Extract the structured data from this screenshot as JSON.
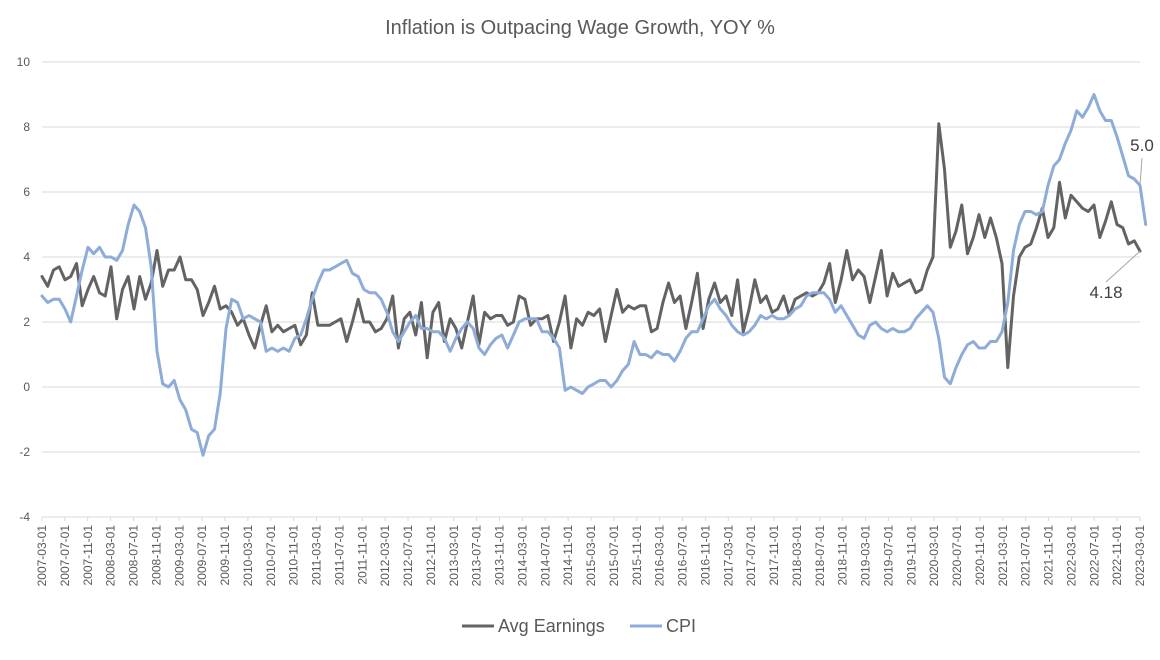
{
  "chart_data": {
    "type": "line",
    "title": "Inflation is Outpacing Wage Growth, YOY %",
    "xlabel": "",
    "ylabel": "",
    "ylim": [
      -4,
      10
    ],
    "yticks": [
      "10",
      "8",
      "6",
      "4",
      "2",
      "0",
      "-2",
      "-4"
    ],
    "x_start": "2007-03-01",
    "x_end": "2023-03-01",
    "x_frequency": "monthly",
    "xtick_labels": [
      "2007-03-01",
      "2007-07-01",
      "2007-11-01",
      "2008-03-01",
      "2008-07-01",
      "2008-11-01",
      "2009-03-01",
      "2009-07-01",
      "2009-11-01",
      "2010-03-01",
      "2010-07-01",
      "2010-11-01",
      "2011-03-01",
      "2011-07-01",
      "2011-11-01",
      "2012-03-01",
      "2012-07-01",
      "2012-11-01",
      "2013-03-01",
      "2013-07-01",
      "2013-11-01",
      "2014-03-01",
      "2014-07-01",
      "2014-11-01",
      "2015-03-01",
      "2015-07-01",
      "2015-11-01",
      "2016-03-01",
      "2016-07-01",
      "2016-11-01",
      "2017-03-01",
      "2017-07-01",
      "2017-11-01",
      "2018-03-01",
      "2018-07-01",
      "2018-11-01",
      "2019-03-01",
      "2019-07-01",
      "2019-11-01",
      "2020-03-01",
      "2020-07-01",
      "2020-11-01",
      "2021-03-01",
      "2021-07-01",
      "2021-11-01",
      "2022-03-01",
      "2022-07-01",
      "2022-11-01",
      "2023-03-01"
    ],
    "grid": true,
    "legend_position": "bottom",
    "series": [
      {
        "name": "Avg Earnings",
        "color": "#636363",
        "values": [
          3.4,
          3.1,
          3.6,
          3.7,
          3.3,
          3.4,
          3.8,
          2.5,
          3.0,
          3.4,
          2.9,
          2.8,
          3.7,
          2.1,
          3.0,
          3.4,
          2.4,
          3.4,
          2.7,
          3.2,
          4.2,
          3.1,
          3.6,
          3.6,
          4.0,
          3.3,
          3.3,
          3.0,
          2.2,
          2.6,
          3.1,
          2.4,
          2.5,
          2.3,
          1.9,
          2.1,
          1.6,
          1.2,
          1.9,
          2.5,
          1.7,
          1.9,
          1.7,
          1.8,
          1.9,
          1.3,
          1.6,
          2.9,
          1.9,
          1.9,
          1.9,
          2.0,
          2.1,
          1.4,
          2.0,
          2.7,
          2.0,
          2.0,
          1.7,
          1.8,
          2.1,
          2.8,
          1.2,
          2.1,
          2.3,
          1.6,
          2.6,
          0.9,
          2.3,
          2.6,
          1.4,
          2.1,
          1.8,
          1.2,
          2.0,
          2.8,
          1.3,
          2.3,
          2.1,
          2.2,
          2.2,
          1.9,
          2.0,
          2.8,
          2.7,
          1.9,
          2.1,
          2.1,
          2.2,
          1.4,
          2.0,
          2.8,
          1.2,
          2.1,
          1.9,
          2.3,
          2.2,
          2.4,
          1.4,
          2.2,
          3.0,
          2.3,
          2.5,
          2.4,
          2.5,
          2.5,
          1.7,
          1.8,
          2.6,
          3.2,
          2.6,
          2.8,
          1.8,
          2.6,
          3.5,
          1.8,
          2.7,
          3.2,
          2.6,
          2.8,
          2.2,
          3.3,
          1.7,
          2.4,
          3.3,
          2.6,
          2.8,
          2.3,
          2.4,
          2.8,
          2.2,
          2.7,
          2.8,
          2.9,
          2.8,
          2.9,
          3.2,
          3.8,
          2.6,
          3.3,
          4.2,
          3.3,
          3.6,
          3.4,
          2.6,
          3.4,
          4.2,
          2.8,
          3.5,
          3.1,
          3.2,
          3.3,
          2.9,
          3.0,
          3.6,
          4.0,
          8.1,
          6.7,
          4.3,
          4.8,
          5.6,
          4.1,
          4.6,
          5.3,
          4.6,
          5.2,
          4.6,
          3.8,
          0.6,
          2.8,
          4.0,
          4.3,
          4.4,
          4.9,
          5.5,
          4.6,
          4.9,
          6.3,
          5.2,
          5.9,
          5.7,
          5.5,
          5.4,
          5.6,
          4.6,
          5.1,
          5.7,
          5.0,
          4.9,
          4.4,
          4.5,
          4.18
        ]
      },
      {
        "name": "CPI",
        "color": "#8eacd8",
        "values": [
          2.8,
          2.6,
          2.7,
          2.7,
          2.4,
          2.0,
          2.8,
          3.6,
          4.3,
          4.1,
          4.3,
          4.0,
          4.0,
          3.9,
          4.2,
          5.0,
          5.6,
          5.4,
          4.9,
          3.7,
          1.1,
          0.1,
          0.0,
          0.2,
          -0.4,
          -0.7,
          -1.3,
          -1.4,
          -2.1,
          -1.5,
          -1.3,
          -0.2,
          1.8,
          2.7,
          2.6,
          2.1,
          2.2,
          2.1,
          2.0,
          1.1,
          1.2,
          1.1,
          1.2,
          1.1,
          1.5,
          1.6,
          2.1,
          2.7,
          3.2,
          3.6,
          3.6,
          3.7,
          3.8,
          3.9,
          3.5,
          3.4,
          3.0,
          2.9,
          2.9,
          2.7,
          2.3,
          1.7,
          1.4,
          1.7,
          2.0,
          2.2,
          1.8,
          1.8,
          1.7,
          1.7,
          1.5,
          1.1,
          1.5,
          1.8,
          2.0,
          1.8,
          1.2,
          1.0,
          1.3,
          1.5,
          1.6,
          1.2,
          1.6,
          2.0,
          2.1,
          2.1,
          2.1,
          1.7,
          1.7,
          1.5,
          1.2,
          -0.1,
          0.0,
          -0.1,
          -0.2,
          0.0,
          0.1,
          0.2,
          0.2,
          0.0,
          0.2,
          0.5,
          0.7,
          1.4,
          1.0,
          1.0,
          0.9,
          1.1,
          1.0,
          1.0,
          0.8,
          1.1,
          1.5,
          1.7,
          1.7,
          2.1,
          2.5,
          2.7,
          2.4,
          2.2,
          1.9,
          1.7,
          1.6,
          1.7,
          1.9,
          2.2,
          2.1,
          2.2,
          2.1,
          2.1,
          2.2,
          2.4,
          2.5,
          2.8,
          2.9,
          2.9,
          2.9,
          2.7,
          2.3,
          2.5,
          2.2,
          1.9,
          1.6,
          1.5,
          1.9,
          2.0,
          1.8,
          1.7,
          1.8,
          1.7,
          1.7,
          1.8,
          2.1,
          2.3,
          2.5,
          2.3,
          1.5,
          0.3,
          0.1,
          0.6,
          1.0,
          1.3,
          1.4,
          1.2,
          1.2,
          1.4,
          1.4,
          1.7,
          2.6,
          4.2,
          5.0,
          5.4,
          5.4,
          5.3,
          5.4,
          6.2,
          6.8,
          7.0,
          7.5,
          7.9,
          8.5,
          8.3,
          8.6,
          9.0,
          8.5,
          8.2,
          8.2,
          7.7,
          7.1,
          6.5,
          6.4,
          6.2,
          5.0
        ]
      }
    ],
    "annotations": [
      {
        "text": "5.0",
        "series": "CPI"
      },
      {
        "text": "4.18",
        "series": "Avg Earnings"
      }
    ]
  }
}
